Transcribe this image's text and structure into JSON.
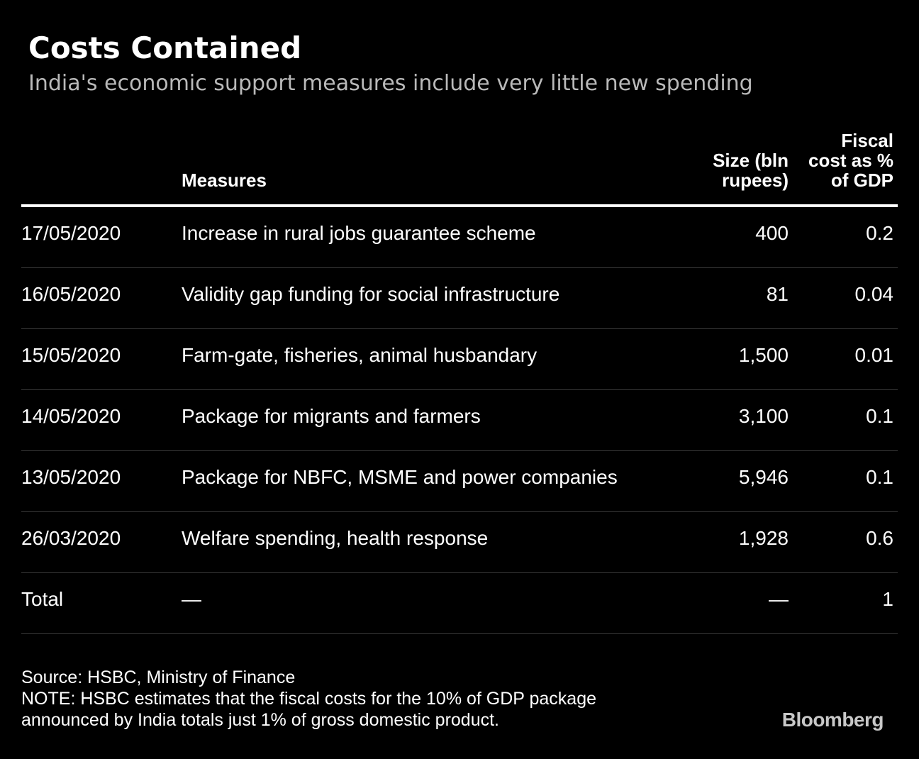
{
  "title": "Costs Contained",
  "subtitle": "India's economic support measures include very little new spending",
  "chart_data": {
    "type": "table",
    "columns": [
      "",
      "Measures",
      "Size (bln rupees)",
      "Fiscal cost as % of GDP"
    ],
    "header": {
      "date": "",
      "measures": "Measures",
      "size": "Size (bln\nrupees)",
      "fiscal": "Fiscal\ncost as %\nof GDP"
    },
    "rows": [
      {
        "date": "17/05/2020",
        "measure": "Increase in rural jobs guarantee scheme",
        "size": "400",
        "fiscal": "0.2"
      },
      {
        "date": "16/05/2020",
        "measure": "Validity gap funding for social infrastructure",
        "size": "81",
        "fiscal": "0.04"
      },
      {
        "date": "15/05/2020",
        "measure": "Farm-gate, fisheries, animal husbandary",
        "size": "1,500",
        "fiscal": "0.01"
      },
      {
        "date": "14/05/2020",
        "measure": "Package for migrants and farmers",
        "size": "3,100",
        "fiscal": "0.1"
      },
      {
        "date": "13/05/2020",
        "measure": "Package for NBFC, MSME and power companies",
        "size": "5,946",
        "fiscal": "0.1"
      },
      {
        "date": "26/03/2020",
        "measure": "Welfare spending, health response",
        "size": "1,928",
        "fiscal": "0.6"
      },
      {
        "date": "Total",
        "measure": "—",
        "size": "—",
        "fiscal": "1"
      }
    ]
  },
  "footer": {
    "source": "Source: HSBC, Ministry of Finance",
    "note_line1": "NOTE: HSBC estimates that the fiscal costs for the 10% of GDP package",
    "note_line2": "announced by India totals just 1% of gross domestic product."
  },
  "logo": "Bloomberg",
  "colors": {
    "background": "#000000",
    "text": "#ffffff",
    "subtitle": "#b9b9b9",
    "divider": "#3a3a3a",
    "logo": "#c8c8c8"
  }
}
